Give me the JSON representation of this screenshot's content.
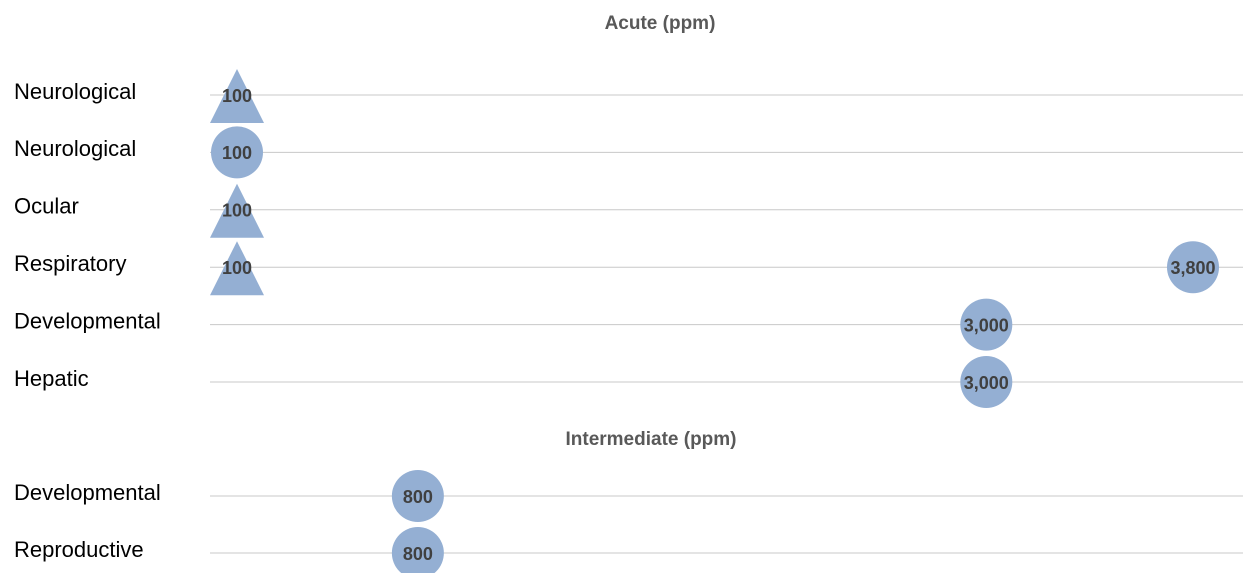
{
  "chart_data": [
    {
      "type": "scatter",
      "title": "Acute (ppm)",
      "xlim": [
        0,
        4000
      ],
      "categories": [
        "Neurological",
        "Neurological",
        "Ocular",
        "Respiratory",
        "Developmental",
        "Hepatic"
      ],
      "points": [
        {
          "row": 0,
          "value": 100,
          "label": "100",
          "marker": "triangle"
        },
        {
          "row": 1,
          "value": 100,
          "label": "100",
          "marker": "circle"
        },
        {
          "row": 2,
          "value": 100,
          "label": "100",
          "marker": "triangle"
        },
        {
          "row": 3,
          "value": 100,
          "label": "100",
          "marker": "triangle"
        },
        {
          "row": 3,
          "value": 3800,
          "label": "3,800",
          "marker": "circle"
        },
        {
          "row": 4,
          "value": 3000,
          "label": "3,000",
          "marker": "circle"
        },
        {
          "row": 5,
          "value": 3000,
          "label": "3,000",
          "marker": "circle"
        }
      ],
      "grid": true,
      "marker_color": "#94afd3"
    },
    {
      "type": "scatter",
      "title": "Intermediate (ppm)",
      "xlim": [
        0,
        4000
      ],
      "categories": [
        "Developmental",
        "Reproductive"
      ],
      "points": [
        {
          "row": 0,
          "value": 800,
          "label": "800",
          "marker": "circle"
        },
        {
          "row": 1,
          "value": 800,
          "label": "800",
          "marker": "circle"
        }
      ],
      "grid": true,
      "marker_color": "#94afd3"
    }
  ]
}
